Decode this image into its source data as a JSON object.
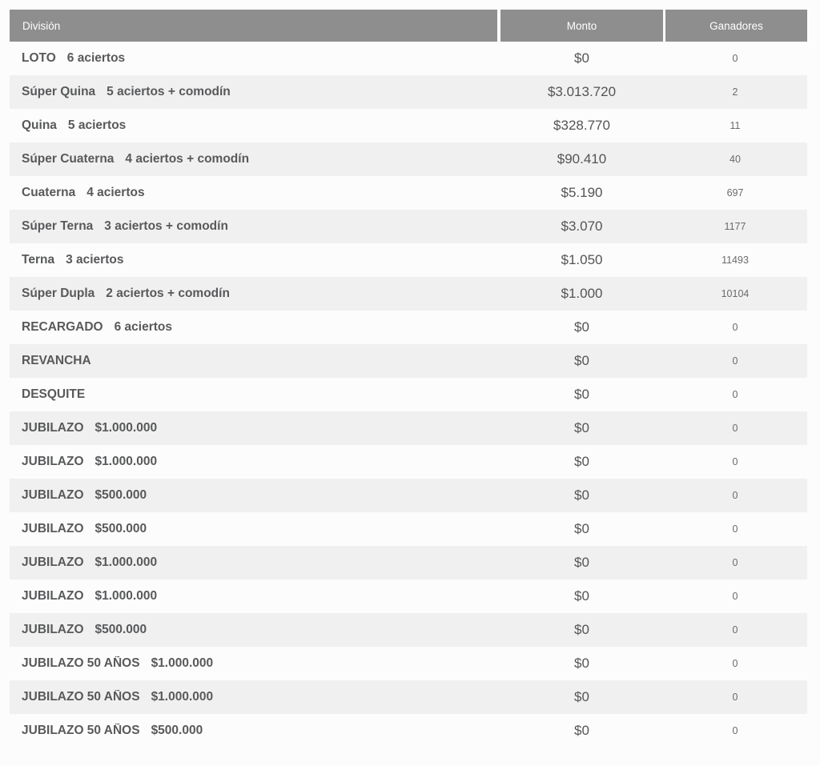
{
  "colors": {
    "page_bg": "#fcfcfc",
    "header_bg": "#8e8e8e",
    "header_text": "#ffffff",
    "row_alt_bg": "#f0f0f0",
    "row_text": "#58595b",
    "monto_text": "#545456",
    "ganadores_text": "#6b6b6b"
  },
  "table": {
    "columns": [
      {
        "label": "División"
      },
      {
        "label": "Monto"
      },
      {
        "label": "Ganadores"
      }
    ],
    "rows": [
      {
        "name": "LOTO",
        "detail": "6 aciertos",
        "monto": "$0",
        "ganadores": "0"
      },
      {
        "name": "Súper Quina",
        "detail": "5 aciertos + comodín",
        "monto": "$3.013.720",
        "ganadores": "2"
      },
      {
        "name": "Quina",
        "detail": "5 aciertos",
        "monto": "$328.770",
        "ganadores": "11"
      },
      {
        "name": "Súper Cuaterna",
        "detail": "4 aciertos + comodín",
        "monto": "$90.410",
        "ganadores": "40"
      },
      {
        "name": "Cuaterna",
        "detail": "4 aciertos",
        "monto": "$5.190",
        "ganadores": "697"
      },
      {
        "name": "Súper Terna",
        "detail": "3 aciertos + comodín",
        "monto": "$3.070",
        "ganadores": "1177"
      },
      {
        "name": "Terna",
        "detail": "3 aciertos",
        "monto": "$1.050",
        "ganadores": "11493"
      },
      {
        "name": "Súper Dupla",
        "detail": "2 aciertos + comodín",
        "monto": "$1.000",
        "ganadores": "10104"
      },
      {
        "name": "RECARGADO",
        "detail": "6 aciertos",
        "monto": "$0",
        "ganadores": "0"
      },
      {
        "name": "REVANCHA",
        "detail": "",
        "monto": "$0",
        "ganadores": "0"
      },
      {
        "name": "DESQUITE",
        "detail": "",
        "monto": "$0",
        "ganadores": "0"
      },
      {
        "name": "JUBILAZO",
        "detail": "$1.000.000",
        "monto": "$0",
        "ganadores": "0"
      },
      {
        "name": "JUBILAZO",
        "detail": "$1.000.000",
        "monto": "$0",
        "ganadores": "0"
      },
      {
        "name": "JUBILAZO",
        "detail": "$500.000",
        "monto": "$0",
        "ganadores": "0"
      },
      {
        "name": "JUBILAZO",
        "detail": "$500.000",
        "monto": "$0",
        "ganadores": "0"
      },
      {
        "name": "JUBILAZO",
        "detail": "$1.000.000",
        "monto": "$0",
        "ganadores": "0"
      },
      {
        "name": "JUBILAZO",
        "detail": "$1.000.000",
        "monto": "$0",
        "ganadores": "0"
      },
      {
        "name": "JUBILAZO",
        "detail": "$500.000",
        "monto": "$0",
        "ganadores": "0"
      },
      {
        "name": "JUBILAZO 50 AÑOS",
        "detail": "$1.000.000",
        "monto": "$0",
        "ganadores": "0"
      },
      {
        "name": "JUBILAZO 50 AÑOS",
        "detail": "$1.000.000",
        "monto": "$0",
        "ganadores": "0"
      },
      {
        "name": "JUBILAZO 50 AÑOS",
        "detail": "$500.000",
        "monto": "$0",
        "ganadores": "0"
      }
    ]
  }
}
